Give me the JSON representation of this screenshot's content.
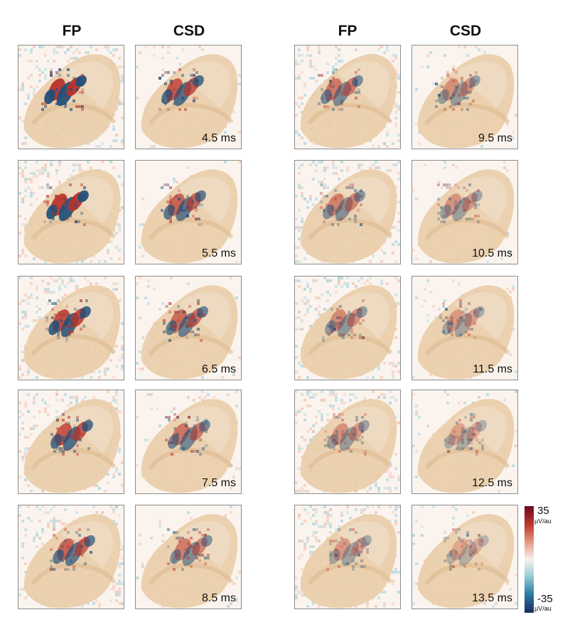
{
  "headers": {
    "left_fp": "FP",
    "left_csd": "CSD",
    "right_fp": "FP",
    "right_csd": "CSD"
  },
  "left_times": [
    "4.5 ms",
    "5.5 ms",
    "6.5 ms",
    "7.5 ms",
    "8.5 ms"
  ],
  "right_times": [
    "9.5 ms",
    "10.5 ms",
    "11.5 ms",
    "12.5 ms",
    "13.5 ms"
  ],
  "colorbar": {
    "max_label": "35",
    "max_unit": "μV/au",
    "min_label": "-35",
    "min_unit": "μV/au",
    "colors": {
      "positive": "#8b1a2b",
      "neutral": "#f7f2ec",
      "negative": "#1a2a5e"
    }
  },
  "colors": {
    "tissue": "#e9cda9",
    "tissue_dark": "#dcb98f",
    "red": "#b8322a",
    "blue": "#1e4f7a",
    "cyan_noise": "#a9d4de",
    "panel_border": "#8c8c8c"
  }
}
